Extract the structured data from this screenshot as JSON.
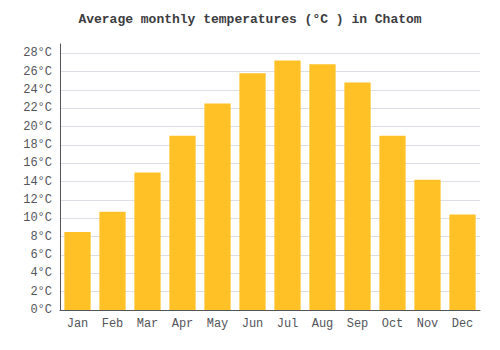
{
  "chart_data": {
    "type": "bar",
    "title": "Average monthly temperatures (°C ) in Chatom",
    "categories": [
      "Jan",
      "Feb",
      "Mar",
      "Apr",
      "May",
      "Jun",
      "Jul",
      "Aug",
      "Sep",
      "Oct",
      "Nov",
      "Dec"
    ],
    "values": [
      8.5,
      10.7,
      15.0,
      19.0,
      22.5,
      25.8,
      27.2,
      26.8,
      24.8,
      19.0,
      14.2,
      10.4
    ],
    "color": "#FFC125",
    "ylim": [
      0,
      29
    ],
    "yticks": [
      {
        "value": 0,
        "label": "0°C"
      },
      {
        "value": 2,
        "label": "2°C"
      },
      {
        "value": 4,
        "label": "4°C"
      },
      {
        "value": 6,
        "label": "6°C"
      },
      {
        "value": 8,
        "label": "8°C"
      },
      {
        "value": 10,
        "label": "10°C"
      },
      {
        "value": 12,
        "label": "12°C"
      },
      {
        "value": 14,
        "label": "14°C"
      },
      {
        "value": 16,
        "label": "16°C"
      },
      {
        "value": 18,
        "label": "18°C"
      },
      {
        "value": 20,
        "label": "20°C"
      },
      {
        "value": 22,
        "label": "22°C"
      },
      {
        "value": 24,
        "label": "24°C"
      },
      {
        "value": 26,
        "label": "26°C"
      },
      {
        "value": 28,
        "label": "28°C"
      }
    ],
    "grid": true
  }
}
